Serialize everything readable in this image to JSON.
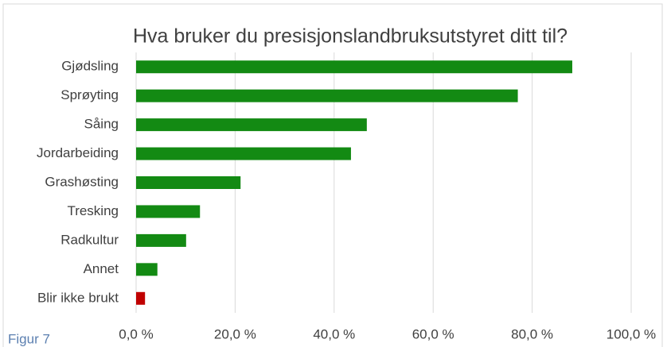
{
  "chart_data": {
    "type": "bar",
    "orientation": "horizontal",
    "title": "Hva bruker du presisjonslandbruksutstyret ditt til?",
    "caption": "Figur 7",
    "categories": [
      "Gjødsling",
      "Sprøyting",
      "Såing",
      "Jordarbeiding",
      "Grashøsting",
      "Tresking",
      "Radkultur",
      "Annet",
      "Blir ikke brukt"
    ],
    "values": [
      88.1,
      77.1,
      46.6,
      43.4,
      21.1,
      12.9,
      10.1,
      4.3,
      1.8
    ],
    "colors": [
      "#138a13",
      "#138a13",
      "#138a13",
      "#138a13",
      "#138a13",
      "#138a13",
      "#138a13",
      "#138a13",
      "#c00000"
    ],
    "xlim": [
      0,
      100
    ],
    "xticks": [
      {
        "value": 0,
        "label": "0,0 %"
      },
      {
        "value": 20,
        "label": "20,0 %"
      },
      {
        "value": 40,
        "label": "40,0 %"
      },
      {
        "value": 60,
        "label": "60,0 %"
      },
      {
        "value": 80,
        "label": "80,0 %"
      },
      {
        "value": 100,
        "label": "100,0 %"
      }
    ],
    "grid": true
  }
}
